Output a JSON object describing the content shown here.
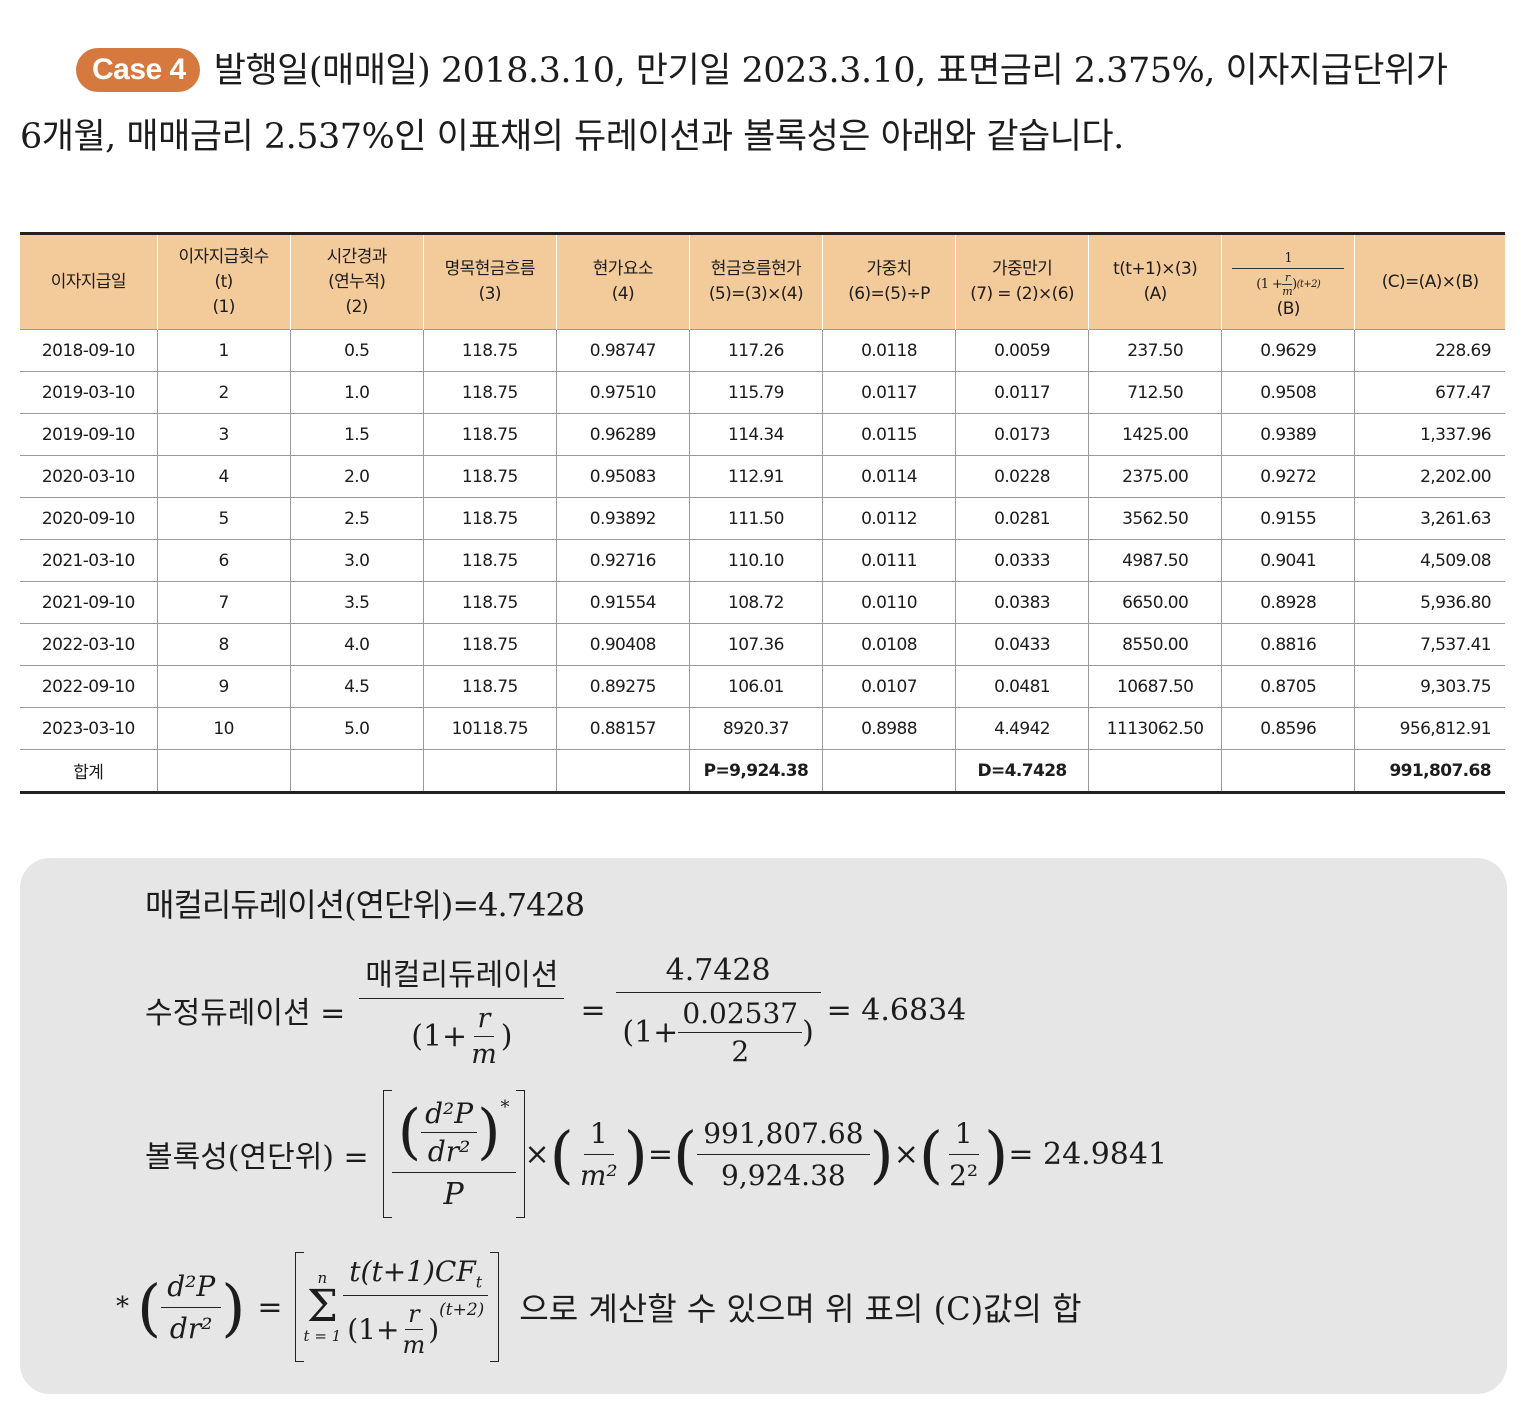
{
  "intro": {
    "badge": "Case 4",
    "line1": "발행일(매매일) 2018.3.10, 만기일 2023.3.10, 표면금리 2.375%, 이자지급단위가",
    "line2": "6개월, 매매금리 2.537%인 이표채의 듀레이션과 볼록성은 아래와 같습니다."
  },
  "table": {
    "headers": [
      [
        "이자지급일"
      ],
      [
        "이자지급횟수",
        "(t)",
        "(1)"
      ],
      [
        "시간경과",
        "(연누적)",
        "(2)"
      ],
      [
        "명목현금흐름",
        "(3)"
      ],
      [
        "현가요소",
        "(4)"
      ],
      [
        "현금흐름현가",
        "(5)=(3)×(4)"
      ],
      [
        "가중치",
        "(6)=(5)÷P"
      ],
      [
        "가중만기",
        "(7) = (2)×(6)"
      ],
      [
        "t(t+1)×(3)",
        "(A)"
      ],
      [
        "(B)"
      ],
      [
        "(C)=(A)×(B)"
      ]
    ],
    "b_header_formula": {
      "num": "1",
      "den_left": "(1 +",
      "r": "r",
      "m": "m",
      "den_right": ")",
      "exp": "(t+2)"
    },
    "rows": [
      [
        "2018-09-10",
        "1",
        "0.5",
        "118.75",
        "0.98747",
        "117.26",
        "0.0118",
        "0.0059",
        "237.50",
        "0.9629",
        "228.69"
      ],
      [
        "2019-03-10",
        "2",
        "1.0",
        "118.75",
        "0.97510",
        "115.79",
        "0.0117",
        "0.0117",
        "712.50",
        "0.9508",
        "677.47"
      ],
      [
        "2019-09-10",
        "3",
        "1.5",
        "118.75",
        "0.96289",
        "114.34",
        "0.0115",
        "0.0173",
        "1425.00",
        "0.9389",
        "1,337.96"
      ],
      [
        "2020-03-10",
        "4",
        "2.0",
        "118.75",
        "0.95083",
        "112.91",
        "0.0114",
        "0.0228",
        "2375.00",
        "0.9272",
        "2,202.00"
      ],
      [
        "2020-09-10",
        "5",
        "2.5",
        "118.75",
        "0.93892",
        "111.50",
        "0.0112",
        "0.0281",
        "3562.50",
        "0.9155",
        "3,261.63"
      ],
      [
        "2021-03-10",
        "6",
        "3.0",
        "118.75",
        "0.92716",
        "110.10",
        "0.0111",
        "0.0333",
        "4987.50",
        "0.9041",
        "4,509.08"
      ],
      [
        "2021-09-10",
        "7",
        "3.5",
        "118.75",
        "0.91554",
        "108.72",
        "0.0110",
        "0.0383",
        "6650.00",
        "0.8928",
        "5,936.80"
      ],
      [
        "2022-03-10",
        "8",
        "4.0",
        "118.75",
        "0.90408",
        "107.36",
        "0.0108",
        "0.0433",
        "8550.00",
        "0.8816",
        "7,537.41"
      ],
      [
        "2022-09-10",
        "9",
        "4.5",
        "118.75",
        "0.89275",
        "106.01",
        "0.0107",
        "0.0481",
        "10687.50",
        "0.8705",
        "9,303.75"
      ],
      [
        "2023-03-10",
        "10",
        "5.0",
        "10118.75",
        "0.88157",
        "8920.37",
        "0.8988",
        "4.4942",
        "1113062.50",
        "0.8596",
        "956,812.91"
      ]
    ],
    "total": {
      "label": "합계",
      "p": "P=9,924.38",
      "d": "D=4.7428",
      "c": "991,807.68"
    }
  },
  "formulas": {
    "macaulay": "매컬리듀레이션(연단위)=4.7428",
    "modified": {
      "label": "수정듀레이션 =",
      "frac1_num": "매컬리듀레이션",
      "frac1_den_left": "(1+",
      "r": "r",
      "m": "m",
      "frac1_den_right": ")",
      "eq": "=",
      "frac2_num": "4.7428",
      "frac2_den_left": "(1+",
      "frac2_inner_num": "0.02537",
      "frac2_inner_den": "2",
      "frac2_den_right": ")",
      "result": "= 4.6834"
    },
    "convexity": {
      "label": "볼록성(연단위) =",
      "d2p": "d²P",
      "dr2": "dr²",
      "star": "*",
      "p": "P",
      "times": "×",
      "one": "1",
      "m2": "m²",
      "eq": "=",
      "num_val": "991,807.68",
      "den_val": "9,924.38",
      "two2": "2²",
      "result": "= 24.9841"
    },
    "footnote": {
      "star": "*",
      "d2p": "d²P",
      "dr2": "dr²",
      "eq": "=",
      "sigma": "Σ",
      "sum_top": "n",
      "sum_bottom": "t = 1",
      "numer": "t(t+1)CF",
      "numer_sub": "t",
      "den_left": "(1+",
      "r": "r",
      "m": "m",
      "den_right": ")",
      "den_exp": "(t+2)",
      "text": "으로 계산할 수 있으며 위 표의 (C)값의 합"
    }
  }
}
